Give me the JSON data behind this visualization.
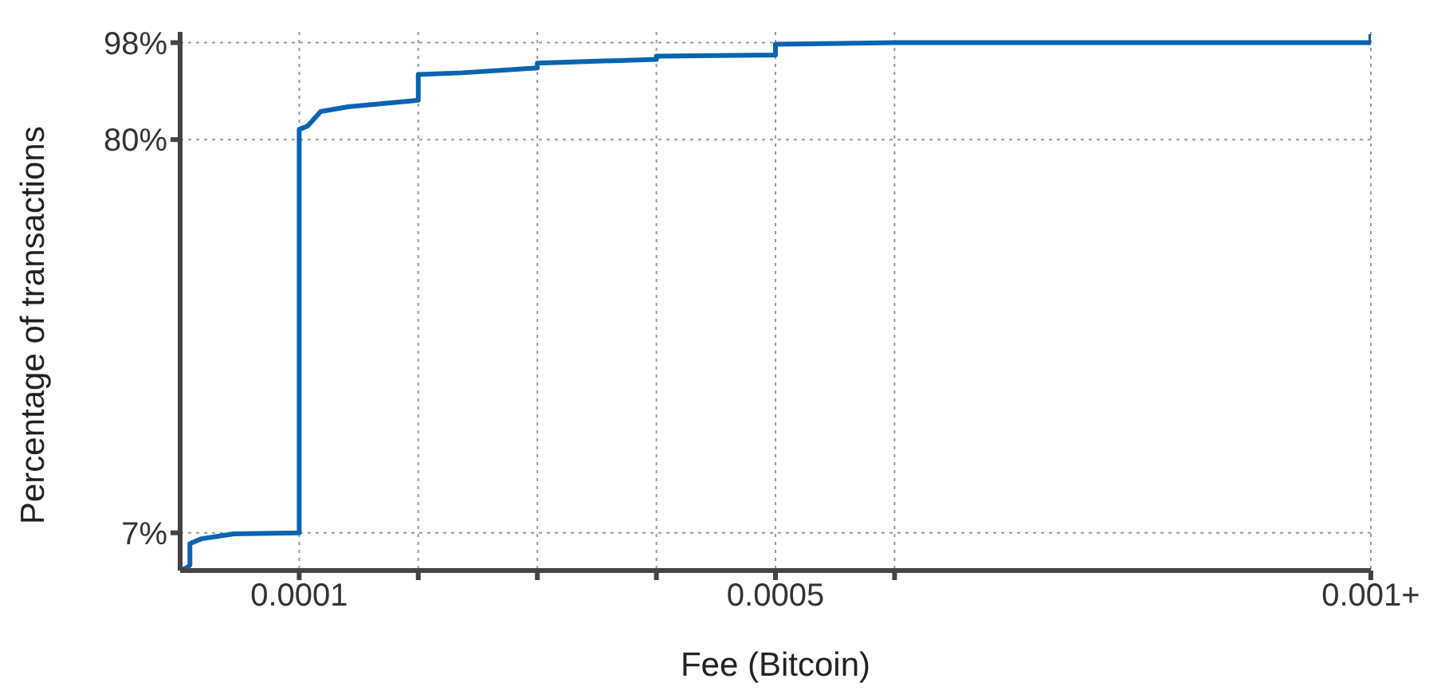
{
  "chart_data": {
    "type": "line",
    "xlabel": "Fee (Bitcoin)",
    "ylabel": "Percentage of transactions",
    "x": [
      0,
      5.5e-06,
      8.2e-06,
      8.2e-06,
      1.8e-05,
      4.5e-05,
      0.0001,
      0.0001,
      0.000107,
      0.000118,
      0.000141,
      0.0002,
      0.0002,
      0.000237,
      0.0003,
      0.0003,
      0.0004,
      0.0004,
      0.0005,
      0.0005,
      0.0006,
      0.001,
      0.001
    ],
    "series": [
      {
        "color": "#0864b0",
        "values": [
          0,
          0.5,
          1,
          5,
          5.9,
          6.8,
          7,
          81.9,
          82.5,
          85.2,
          86.1,
          87.3,
          92.1,
          92.4,
          93.3,
          94.2,
          94.9,
          95.5,
          95.7,
          97.7,
          98,
          98,
          99.6
        ]
      }
    ],
    "xlim": [
      0,
      0.001
    ],
    "ylim": [
      0,
      100
    ],
    "xticks": [
      {
        "value": 0.0001,
        "label": "0.0001"
      },
      {
        "value": 0.0002,
        "label": null
      },
      {
        "value": 0.0003,
        "label": null
      },
      {
        "value": 0.0004,
        "label": null
      },
      {
        "value": 0.0005,
        "label": "0.0005"
      },
      {
        "value": 0.0006,
        "label": null
      },
      {
        "value": 0.001,
        "label": "0.001+"
      }
    ],
    "yticks": [
      {
        "value": 7,
        "label": "7%"
      },
      {
        "value": 80,
        "label": "80%"
      },
      {
        "value": 98,
        "label": "98%"
      }
    ],
    "grid": true,
    "legend": false,
    "marker": "none",
    "line_style": "solid"
  }
}
